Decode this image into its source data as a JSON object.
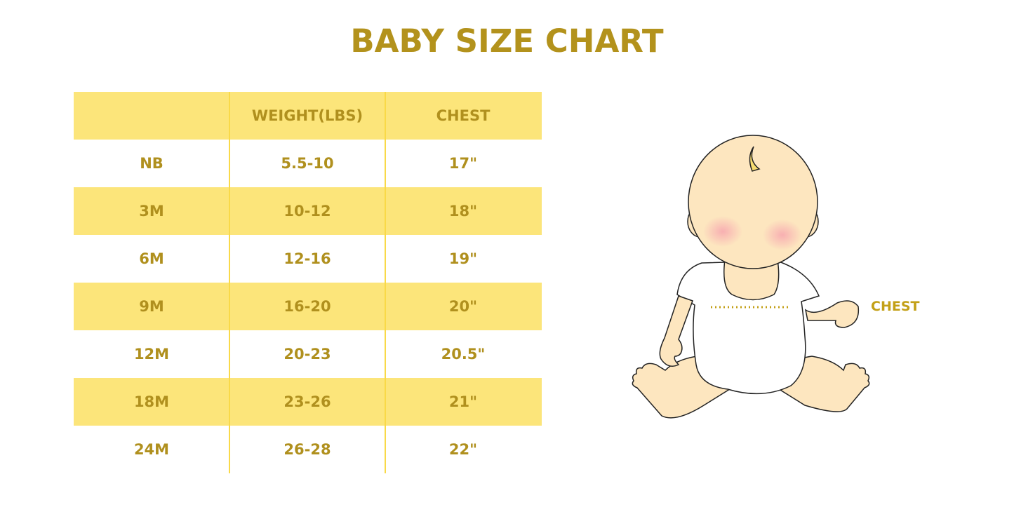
{
  "title": "BABY SIZE CHART",
  "table": {
    "headers": [
      "",
      "WEIGHT(LBS)",
      "CHEST"
    ],
    "rows": [
      [
        "NB",
        "5.5-10",
        "17\""
      ],
      [
        "3M",
        "10-12",
        "18\""
      ],
      [
        "6M",
        "12-16",
        "19\""
      ],
      [
        "9M",
        "16-20",
        "20\""
      ],
      [
        "12M",
        "20-23",
        "20.5\""
      ],
      [
        "18M",
        "23-26",
        "21\""
      ],
      [
        "24M",
        "26-28",
        "22\""
      ]
    ]
  },
  "illustration": {
    "chest_label": "CHEST"
  },
  "colors": {
    "text": "#b0901e",
    "band": "#fce57a",
    "skin": "#fde6bf"
  }
}
